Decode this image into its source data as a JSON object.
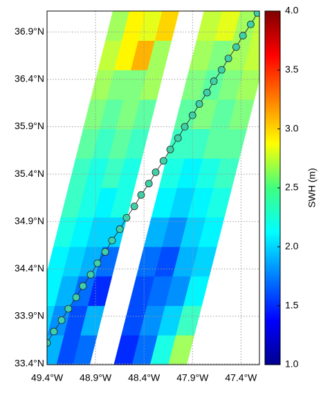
{
  "chart_data": {
    "type": "swath-map",
    "colorbar_label": "SWH (m)",
    "clim": [
      1,
      4
    ],
    "cticks": [
      {
        "value": 1,
        "label": "1.0"
      },
      {
        "value": 1.5,
        "label": "1.5"
      },
      {
        "value": 2,
        "label": "2.0"
      },
      {
        "value": 2.5,
        "label": "2.5"
      },
      {
        "value": 3,
        "label": "3.0"
      },
      {
        "value": 3.5,
        "label": "3.5"
      },
      {
        "value": 4,
        "label": "4.0"
      }
    ],
    "xlim": [
      -49.4,
      -47.21
    ],
    "ylim": [
      33.39,
      37.12
    ],
    "xticks": [
      {
        "value": -49.4,
        "label": "49.4°W"
      },
      {
        "value": -48.9,
        "label": "48.9°W"
      },
      {
        "value": -48.4,
        "label": "48.4°W"
      },
      {
        "value": -47.9,
        "label": "47.9°W"
      },
      {
        "value": -47.4,
        "label": "47.4°W"
      }
    ],
    "yticks": [
      {
        "value": 33.4,
        "label": "33.4°N"
      },
      {
        "value": 33.9,
        "label": "33.9°N"
      },
      {
        "value": 34.4,
        "label": "34.4°N"
      },
      {
        "value": 34.9,
        "label": "34.9°N"
      },
      {
        "value": 35.4,
        "label": "35.4°N"
      },
      {
        "value": 35.9,
        "label": "35.9°N"
      },
      {
        "value": 36.4,
        "label": "36.4°N"
      },
      {
        "value": 36.9,
        "label": "36.9°N"
      }
    ],
    "grid": true,
    "swaths": [
      {
        "bottom_lon": [
          -49.64,
          -48.96
        ],
        "top_lon": [
          -48.72,
          -48.04
        ],
        "lat": [
          33.39,
          37.12
        ],
        "values": [
          [
            2.2,
            1.9,
            1.6,
            1.7
          ],
          [
            2.0,
            1.8,
            1.6,
            1.9
          ],
          [
            2.1,
            1.9,
            1.7,
            1.5
          ],
          [
            2.1,
            2.0,
            1.9,
            1.7
          ],
          [
            2.2,
            2.1,
            2.0,
            2.0
          ],
          [
            2.3,
            2.2,
            2.1,
            2.2
          ],
          [
            2.3,
            2.2,
            2.3,
            2.2
          ],
          [
            2.4,
            2.3,
            2.4,
            2.3
          ],
          [
            2.5,
            2.4,
            2.5,
            2.4
          ],
          [
            2.6,
            2.5,
            2.5,
            2.6
          ],
          [
            2.7,
            2.9,
            3.1,
            2.6
          ],
          [
            2.6,
            2.9,
            2.8,
            3.0
          ]
        ]
      },
      {
        "bottom_lon": [
          -48.71,
          -47.96
        ],
        "top_lon": [
          -47.78,
          -47.03
        ],
        "lat": [
          33.39,
          37.12
        ],
        "values": [
          [
            1.5,
            1.7,
            2.2,
            2.6
          ],
          [
            1.6,
            1.8,
            2.0,
            2.3
          ],
          [
            1.6,
            1.7,
            1.8,
            2.1
          ],
          [
            1.7,
            1.6,
            1.9,
            2.0
          ],
          [
            1.9,
            1.8,
            2.0,
            2.1
          ],
          [
            2.1,
            2.0,
            2.1,
            2.2
          ],
          [
            2.2,
            2.1,
            2.2,
            2.3
          ],
          [
            2.3,
            2.3,
            2.4,
            2.4
          ],
          [
            2.4,
            2.5,
            2.4,
            2.5
          ],
          [
            2.5,
            2.4,
            2.5,
            2.6
          ],
          [
            2.6,
            2.5,
            2.6,
            2.7
          ],
          [
            2.7,
            2.8,
            2.6,
            2.7
          ]
        ]
      }
    ],
    "track": {
      "color": "#40d0a8",
      "lon": [
        -49.4,
        -49.33,
        -49.25,
        -49.18,
        -49.1,
        -49.03,
        -48.95,
        -48.88,
        -48.8,
        -48.73,
        -48.65,
        -48.58,
        -48.5,
        -48.43,
        -48.35,
        -48.28,
        -48.2,
        -48.13,
        -48.05,
        -47.98,
        -47.9,
        -47.83,
        -47.75,
        -47.68,
        -47.6,
        -47.53,
        -47.45,
        -47.38,
        -47.3,
        -47.23
      ],
      "lat": [
        33.62,
        33.74,
        33.86,
        33.98,
        34.1,
        34.22,
        34.34,
        34.46,
        34.58,
        34.7,
        34.82,
        34.94,
        35.06,
        35.18,
        35.3,
        35.42,
        35.54,
        35.66,
        35.78,
        35.9,
        36.02,
        36.14,
        36.26,
        36.38,
        36.5,
        36.62,
        36.74,
        36.86,
        36.98,
        37.1
      ]
    }
  }
}
